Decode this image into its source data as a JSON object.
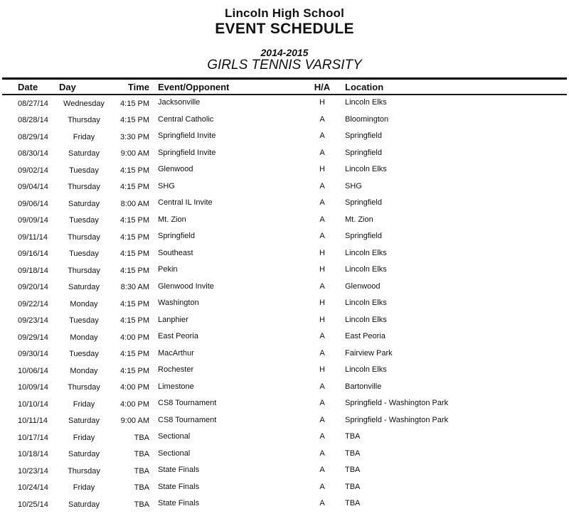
{
  "header": {
    "school": "Lincoln High School",
    "title": "EVENT SCHEDULE",
    "season": "2014-2015",
    "team": "GIRLS TENNIS VARSITY"
  },
  "table": {
    "columns": [
      "Date",
      "Day",
      "Time",
      "Event/Opponent",
      "H/A",
      "Location"
    ],
    "rows": [
      {
        "date": "08/27/14",
        "day": "Wednesday",
        "time": "4:15 PM",
        "event": "Jacksonville",
        "ha": "H",
        "location": "Lincoln Elks"
      },
      {
        "date": "08/28/14",
        "day": "Thursday",
        "time": "4:15 PM",
        "event": "Central Catholic",
        "ha": "A",
        "location": "Bloomington"
      },
      {
        "date": "08/29/14",
        "day": "Friday",
        "time": "3:30 PM",
        "event": "Springfield Invite",
        "ha": "A",
        "location": "Springfield"
      },
      {
        "date": "08/30/14",
        "day": "Saturday",
        "time": "9:00 AM",
        "event": "Springfield Invite",
        "ha": "A",
        "location": "Springfield"
      },
      {
        "date": "09/02/14",
        "day": "Tuesday",
        "time": "4:15 PM",
        "event": "Glenwood",
        "ha": "H",
        "location": "Lincoln Elks"
      },
      {
        "date": "09/04/14",
        "day": "Thursday",
        "time": "4:15 PM",
        "event": "SHG",
        "ha": "A",
        "location": "SHG"
      },
      {
        "date": "09/06/14",
        "day": "Saturday",
        "time": "8:00 AM",
        "event": "Central IL Invite",
        "ha": "A",
        "location": "Springfield"
      },
      {
        "date": "09/09/14",
        "day": "Tuesday",
        "time": "4:15 PM",
        "event": "Mt. Zion",
        "ha": "A",
        "location": "Mt. Zion"
      },
      {
        "date": "09/11/14",
        "day": "Thursday",
        "time": "4:15 PM",
        "event": "Springfield",
        "ha": "A",
        "location": "Springfield"
      },
      {
        "date": "09/16/14",
        "day": "Tuesday",
        "time": "4:15 PM",
        "event": "Southeast",
        "ha": "H",
        "location": "Lincoln Elks"
      },
      {
        "date": "09/18/14",
        "day": "Thursday",
        "time": "4:15 PM",
        "event": "Pekin",
        "ha": "H",
        "location": "Lincoln Elks"
      },
      {
        "date": "09/20/14",
        "day": "Saturday",
        "time": "8:30 AM",
        "event": "Glenwood Invite",
        "ha": "A",
        "location": "Glenwood"
      },
      {
        "date": "09/22/14",
        "day": "Monday",
        "time": "4:15 PM",
        "event": "Washington",
        "ha": "H",
        "location": "Lincoln Elks"
      },
      {
        "date": "09/23/14",
        "day": "Tuesday",
        "time": "4:15 PM",
        "event": "Lanphier",
        "ha": "H",
        "location": "Lincoln Elks"
      },
      {
        "date": "09/29/14",
        "day": "Monday",
        "time": "4:00 PM",
        "event": "East Peoria",
        "ha": "A",
        "location": "East Peoria"
      },
      {
        "date": "09/30/14",
        "day": "Tuesday",
        "time": "4:15 PM",
        "event": "MacArthur",
        "ha": "A",
        "location": "Fairview Park"
      },
      {
        "date": "10/06/14",
        "day": "Monday",
        "time": "4:15 PM",
        "event": "Rochester",
        "ha": "H",
        "location": "Lincoln Elks"
      },
      {
        "date": "10/09/14",
        "day": "Thursday",
        "time": "4:00 PM",
        "event": "Limestone",
        "ha": "A",
        "location": "Bartonville"
      },
      {
        "date": "10/10/14",
        "day": "Friday",
        "time": "4:00 PM",
        "event": "CS8 Tournament",
        "ha": "A",
        "location": "Springfield - Washington Park"
      },
      {
        "date": "10/11/14",
        "day": "Saturday",
        "time": "9:00 AM",
        "event": "CS8 Tournament",
        "ha": "A",
        "location": "Springfield - Washington Park"
      },
      {
        "date": "10/17/14",
        "day": "Friday",
        "time": "TBA",
        "event": "Sectional",
        "ha": "A",
        "location": "TBA"
      },
      {
        "date": "10/18/14",
        "day": "Saturday",
        "time": "TBA",
        "event": "Sectional",
        "ha": "A",
        "location": "TBA"
      },
      {
        "date": "10/23/14",
        "day": "Thursday",
        "time": "TBA",
        "event": "State Finals",
        "ha": "A",
        "location": "TBA"
      },
      {
        "date": "10/24/14",
        "day": "Friday",
        "time": "TBA",
        "event": "State Finals",
        "ha": "A",
        "location": "TBA"
      },
      {
        "date": "10/25/14",
        "day": "Saturday",
        "time": "TBA",
        "event": "State Finals",
        "ha": "A",
        "location": "TBA"
      }
    ]
  }
}
